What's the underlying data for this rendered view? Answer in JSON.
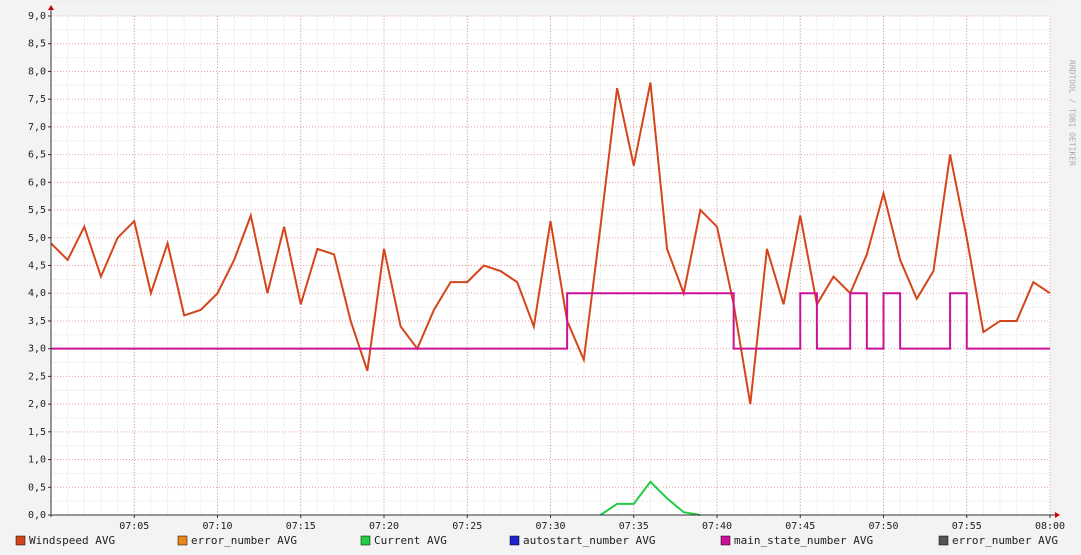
{
  "chart_data": {
    "type": "line",
    "watermark": "RRDTOOL / TOBI OETIKER",
    "x": [
      "07:00",
      "07:01",
      "07:02",
      "07:03",
      "07:04",
      "07:05",
      "07:06",
      "07:07",
      "07:08",
      "07:09",
      "07:10",
      "07:11",
      "07:12",
      "07:13",
      "07:14",
      "07:15",
      "07:16",
      "07:17",
      "07:18",
      "07:19",
      "07:20",
      "07:21",
      "07:22",
      "07:23",
      "07:24",
      "07:25",
      "07:26",
      "07:27",
      "07:28",
      "07:29",
      "07:30",
      "07:31",
      "07:32",
      "07:33",
      "07:34",
      "07:35",
      "07:36",
      "07:37",
      "07:38",
      "07:39",
      "07:40",
      "07:41",
      "07:42",
      "07:43",
      "07:44",
      "07:45",
      "07:46",
      "07:47",
      "07:48",
      "07:49",
      "07:50",
      "07:51",
      "07:52",
      "07:53",
      "07:54",
      "07:55",
      "07:56",
      "07:57",
      "07:58",
      "07:59",
      "08:00"
    ],
    "xlim": [
      "07:00",
      "08:00"
    ],
    "xticks": [
      "07:05",
      "07:10",
      "07:15",
      "07:20",
      "07:25",
      "07:30",
      "07:35",
      "07:40",
      "07:45",
      "07:50",
      "07:55",
      "08:00"
    ],
    "ylim": [
      0,
      9
    ],
    "yticks": [
      {
        "value": 0,
        "label": "0,0"
      },
      {
        "value": 0.5,
        "label": "0,5"
      },
      {
        "value": 1,
        "label": "1,0"
      },
      {
        "value": 1.5,
        "label": "1,5"
      },
      {
        "value": 2,
        "label": "2,0"
      },
      {
        "value": 2.5,
        "label": "2,5"
      },
      {
        "value": 3,
        "label": "3,0"
      },
      {
        "value": 3.5,
        "label": "3,5"
      },
      {
        "value": 4,
        "label": "4,0"
      },
      {
        "value": 4.5,
        "label": "4,5"
      },
      {
        "value": 5,
        "label": "5,0"
      },
      {
        "value": 5.5,
        "label": "5,5"
      },
      {
        "value": 6,
        "label": "6,0"
      },
      {
        "value": 6.5,
        "label": "6,5"
      },
      {
        "value": 7,
        "label": "7,0"
      },
      {
        "value": 7.5,
        "label": "7,5"
      },
      {
        "value": 8,
        "label": "8,0"
      },
      {
        "value": 8.5,
        "label": "8,5"
      },
      {
        "value": 9,
        "label": "9,0"
      }
    ],
    "grid": true,
    "series": [
      {
        "name": "Windspeed AVG",
        "color": "#d4461a",
        "values": [
          4.9,
          4.6,
          5.2,
          4.3,
          5.0,
          5.3,
          4.0,
          4.9,
          3.6,
          3.7,
          4.0,
          4.6,
          5.4,
          4.0,
          5.2,
          3.8,
          4.8,
          4.7,
          3.5,
          2.6,
          4.8,
          3.4,
          3.0,
          3.7,
          4.2,
          4.2,
          4.5,
          4.4,
          4.2,
          3.4,
          5.3,
          3.5,
          2.8,
          5.2,
          7.7,
          6.3,
          7.8,
          4.8,
          4.0,
          5.5,
          5.2,
          3.8,
          2.0,
          4.8,
          3.8,
          5.4,
          3.8,
          4.3,
          4.0,
          4.7,
          5.8,
          4.6,
          3.9,
          4.4,
          6.5,
          5.0,
          3.3,
          3.5,
          3.5,
          4.2,
          4.0
        ]
      },
      {
        "name": "error_number AVG",
        "color": "#e8881a",
        "values": [
          null,
          null,
          null,
          null,
          null,
          null,
          null,
          null,
          null,
          null,
          null,
          null,
          null,
          null,
          null,
          null,
          null,
          null,
          null,
          null,
          null,
          null,
          null,
          null,
          null,
          null,
          null,
          null,
          null,
          null,
          null,
          null,
          null,
          null,
          null,
          null,
          null,
          null,
          null,
          null,
          null,
          null,
          null,
          null,
          null,
          null,
          null,
          null,
          null,
          null,
          null,
          null,
          null,
          null,
          null,
          null,
          null,
          null,
          null,
          null,
          null
        ]
      },
      {
        "name": "Current AVG",
        "color": "#22cc44",
        "values": [
          null,
          null,
          null,
          null,
          null,
          null,
          null,
          null,
          null,
          null,
          null,
          null,
          null,
          null,
          null,
          null,
          null,
          null,
          null,
          null,
          null,
          null,
          null,
          null,
          null,
          null,
          null,
          null,
          null,
          null,
          null,
          null,
          null,
          0,
          0.2,
          0.2,
          0.6,
          0.3,
          0.05,
          0,
          null,
          null,
          null,
          null,
          null,
          null,
          null,
          null,
          null,
          null,
          null,
          null,
          null,
          null,
          null,
          null,
          null,
          null,
          null,
          null,
          null
        ]
      },
      {
        "name": "autostart_number AVG",
        "color": "#2222cc",
        "values": [
          null,
          null,
          null,
          null,
          null,
          null,
          null,
          null,
          null,
          null,
          null,
          null,
          null,
          null,
          null,
          null,
          null,
          null,
          null,
          null,
          null,
          null,
          null,
          null,
          null,
          null,
          null,
          null,
          null,
          null,
          null,
          null,
          null,
          null,
          null,
          null,
          null,
          null,
          null,
          null,
          null,
          null,
          null,
          null,
          null,
          null,
          null,
          null,
          null,
          null,
          null,
          null,
          null,
          null,
          null,
          null,
          null,
          null,
          null,
          null,
          null
        ]
      },
      {
        "name": "main_state_number AVG",
        "color": "#cc1199",
        "step": true,
        "values": [
          3,
          3,
          3,
          3,
          3,
          3,
          3,
          3,
          3,
          3,
          3,
          3,
          3,
          3,
          3,
          3,
          3,
          3,
          3,
          3,
          3,
          3,
          3,
          3,
          3,
          3,
          3,
          3,
          3,
          3,
          3,
          4,
          4,
          4,
          4,
          4,
          4,
          4,
          4,
          4,
          4,
          3,
          3,
          3,
          3,
          4,
          3,
          3,
          4,
          3,
          4,
          3,
          3,
          3,
          4,
          3,
          3,
          3,
          3,
          3,
          3
        ]
      },
      {
        "name": "error_number AVG",
        "color": "#555555",
        "values": [
          null,
          null,
          null,
          null,
          null,
          null,
          null,
          null,
          null,
          null,
          null,
          null,
          null,
          null,
          null,
          null,
          null,
          null,
          null,
          null,
          null,
          null,
          null,
          null,
          null,
          null,
          null,
          null,
          null,
          null,
          null,
          null,
          null,
          null,
          null,
          null,
          null,
          null,
          null,
          null,
          null,
          null,
          null,
          null,
          null,
          null,
          null,
          null,
          null,
          null,
          null,
          null,
          null,
          null,
          null,
          null,
          null,
          null,
          null,
          null,
          null
        ]
      }
    ]
  }
}
